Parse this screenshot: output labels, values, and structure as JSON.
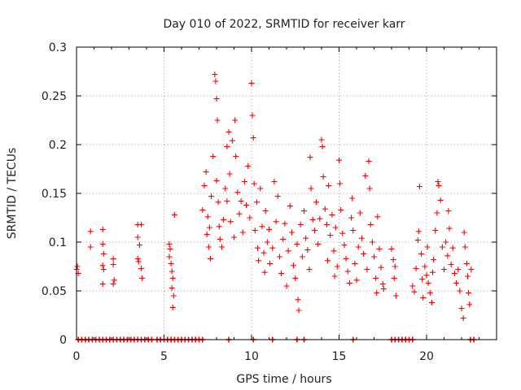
{
  "chart_data": {
    "type": "scatter",
    "title": "Day 010 of 2022, SRMTID for receiver karr",
    "xlabel": "GPS time / hours",
    "ylabel": "SRMTID / TECUs",
    "xlim": [
      0,
      24
    ],
    "ylim": [
      0,
      0.3
    ],
    "xticks": [
      0,
      5,
      10,
      15,
      20
    ],
    "xtick_labels": [
      "0",
      "5",
      "10",
      "15",
      "20"
    ],
    "yticks": [
      0,
      0.05,
      0.1,
      0.15,
      0.2,
      0.25,
      0.3
    ],
    "ytick_labels": [
      "0",
      "0.05",
      "0.1",
      "0.15",
      "0.2",
      "0.25",
      "0.3"
    ],
    "grid": true,
    "marker": "+",
    "color": "#ff0000",
    "series": [
      {
        "name": "SRMTID",
        "points": [
          [
            0.0,
            0.072
          ],
          [
            0.05,
            0.075
          ],
          [
            0.1,
            0.068
          ],
          [
            0.8,
            0.111
          ],
          [
            0.8,
            0.095
          ],
          [
            1.5,
            0.113
          ],
          [
            1.5,
            0.098
          ],
          [
            1.55,
            0.088
          ],
          [
            1.5,
            0.076
          ],
          [
            1.55,
            0.072
          ],
          [
            1.5,
            0.057
          ],
          [
            2.1,
            0.083
          ],
          [
            2.1,
            0.077
          ],
          [
            2.15,
            0.061
          ],
          [
            2.1,
            0.057
          ],
          [
            3.5,
            0.118
          ],
          [
            3.5,
            0.105
          ],
          [
            3.6,
            0.097
          ],
          [
            3.5,
            0.083
          ],
          [
            3.55,
            0.08
          ],
          [
            3.7,
            0.118
          ],
          [
            3.7,
            0.073
          ],
          [
            3.75,
            0.063
          ],
          [
            5.3,
            0.098
          ],
          [
            5.35,
            0.093
          ],
          [
            5.3,
            0.085
          ],
          [
            5.4,
            0.078
          ],
          [
            5.45,
            0.07
          ],
          [
            5.5,
            0.063
          ],
          [
            5.45,
            0.053
          ],
          [
            5.55,
            0.045
          ],
          [
            5.5,
            0.033
          ],
          [
            5.6,
            0.128
          ],
          [
            7.2,
            0.133
          ],
          [
            7.3,
            0.158
          ],
          [
            7.4,
            0.172
          ],
          [
            7.45,
            0.108
          ],
          [
            7.5,
            0.126
          ],
          [
            7.55,
            0.095
          ],
          [
            7.6,
            0.115
          ],
          [
            7.65,
            0.083
          ],
          [
            7.7,
            0.147
          ],
          [
            7.8,
            0.188
          ],
          [
            7.9,
            0.272
          ],
          [
            7.95,
            0.265
          ],
          [
            8.0,
            0.247
          ],
          [
            8.05,
            0.225
          ],
          [
            8.0,
            0.163
          ],
          [
            8.1,
            0.141
          ],
          [
            8.15,
            0.116
          ],
          [
            8.2,
            0.103
          ],
          [
            8.3,
            0.095
          ],
          [
            8.4,
            0.123
          ],
          [
            8.5,
            0.155
          ],
          [
            8.6,
            0.142
          ],
          [
            8.6,
            0.198
          ],
          [
            8.7,
            0.213
          ],
          [
            8.75,
            0.17
          ],
          [
            8.8,
            0.121
          ],
          [
            8.9,
            0.204
          ],
          [
            9.0,
            0.105
          ],
          [
            9.05,
            0.225
          ],
          [
            9.1,
            0.188
          ],
          [
            9.2,
            0.151
          ],
          [
            9.3,
            0.129
          ],
          [
            9.4,
            0.142
          ],
          [
            9.5,
            0.11
          ],
          [
            9.6,
            0.162
          ],
          [
            9.7,
            0.138
          ],
          [
            9.8,
            0.178
          ],
          [
            9.9,
            0.125
          ],
          [
            10.0,
            0.263
          ],
          [
            10.05,
            0.23
          ],
          [
            10.1,
            0.207
          ],
          [
            10.15,
            0.16
          ],
          [
            10.2,
            0.112
          ],
          [
            10.3,
            0.141
          ],
          [
            10.35,
            0.094
          ],
          [
            10.4,
            0.081
          ],
          [
            10.5,
            0.155
          ],
          [
            10.6,
            0.116
          ],
          [
            10.7,
            0.089
          ],
          [
            10.75,
            0.069
          ],
          [
            10.8,
            0.132
          ],
          [
            10.9,
            0.1
          ],
          [
            11.0,
            0.113
          ],
          [
            11.05,
            0.078
          ],
          [
            11.2,
            0.094
          ],
          [
            11.3,
            0.162
          ],
          [
            11.4,
            0.121
          ],
          [
            11.5,
            0.147
          ],
          [
            11.6,
            0.085
          ],
          [
            11.7,
            0.068
          ],
          [
            11.8,
            0.103
          ],
          [
            11.9,
            0.119
          ],
          [
            12.0,
            0.055
          ],
          [
            12.1,
            0.091
          ],
          [
            12.2,
            0.137
          ],
          [
            12.3,
            0.11
          ],
          [
            12.4,
            0.076
          ],
          [
            12.5,
            0.063
          ],
          [
            12.6,
            0.098
          ],
          [
            12.65,
            0.041
          ],
          [
            12.7,
            0.03
          ],
          [
            12.8,
            0.118
          ],
          [
            12.9,
            0.085
          ],
          [
            13.0,
            0.132
          ],
          [
            13.1,
            0.104
          ],
          [
            13.2,
            0.092
          ],
          [
            13.3,
            0.072
          ],
          [
            13.35,
            0.187
          ],
          [
            13.4,
            0.155
          ],
          [
            13.5,
            0.123
          ],
          [
            13.6,
            0.112
          ],
          [
            13.7,
            0.141
          ],
          [
            13.8,
            0.098
          ],
          [
            13.9,
            0.124
          ],
          [
            14.0,
            0.205
          ],
          [
            14.05,
            0.198
          ],
          [
            14.1,
            0.167
          ],
          [
            14.2,
            0.134
          ],
          [
            14.3,
            0.118
          ],
          [
            14.35,
            0.081
          ],
          [
            14.4,
            0.158
          ],
          [
            14.5,
            0.107
          ],
          [
            14.6,
            0.128
          ],
          [
            14.7,
            0.091
          ],
          [
            14.75,
            0.065
          ],
          [
            14.8,
            0.115
          ],
          [
            14.9,
            0.075
          ],
          [
            15.0,
            0.184
          ],
          [
            15.05,
            0.16
          ],
          [
            15.1,
            0.133
          ],
          [
            15.2,
            0.109
          ],
          [
            15.3,
            0.097
          ],
          [
            15.4,
            0.083
          ],
          [
            15.5,
            0.07
          ],
          [
            15.6,
            0.058
          ],
          [
            15.7,
            0.125
          ],
          [
            15.75,
            0.145
          ],
          [
            15.8,
            0.112
          ],
          [
            15.9,
            0.078
          ],
          [
            16.0,
            0.061
          ],
          [
            16.1,
            0.095
          ],
          [
            16.2,
            0.13
          ],
          [
            16.3,
            0.104
          ],
          [
            16.4,
            0.088
          ],
          [
            16.5,
            0.168
          ],
          [
            16.6,
            0.072
          ],
          [
            16.7,
            0.183
          ],
          [
            16.75,
            0.155
          ],
          [
            16.8,
            0.118
          ],
          [
            16.9,
            0.1
          ],
          [
            17.0,
            0.085
          ],
          [
            17.1,
            0.063
          ],
          [
            17.15,
            0.048
          ],
          [
            17.2,
            0.126
          ],
          [
            17.3,
            0.093
          ],
          [
            17.4,
            0.074
          ],
          [
            17.5,
            0.057
          ],
          [
            17.55,
            0.052
          ],
          [
            18.0,
            0.093
          ],
          [
            18.1,
            0.082
          ],
          [
            18.2,
            0.075
          ],
          [
            18.15,
            0.063
          ],
          [
            18.25,
            0.045
          ],
          [
            19.2,
            0.055
          ],
          [
            19.3,
            0.049
          ],
          [
            19.4,
            0.073
          ],
          [
            19.5,
            0.102
          ],
          [
            19.55,
            0.111
          ],
          [
            19.6,
            0.157
          ],
          [
            19.7,
            0.088
          ],
          [
            19.75,
            0.062
          ],
          [
            19.8,
            0.043
          ],
          [
            19.9,
            0.075
          ],
          [
            20.0,
            0.066
          ],
          [
            20.05,
            0.095
          ],
          [
            20.1,
            0.058
          ],
          [
            20.2,
            0.048
          ],
          [
            20.3,
            0.038
          ],
          [
            20.35,
            0.069
          ],
          [
            20.4,
            0.082
          ],
          [
            20.5,
            0.112
          ],
          [
            20.6,
            0.13
          ],
          [
            20.65,
            0.162
          ],
          [
            20.7,
            0.158
          ],
          [
            20.8,
            0.143
          ],
          [
            20.9,
            0.095
          ],
          [
            21.0,
            0.072
          ],
          [
            21.1,
            0.1
          ],
          [
            21.2,
            0.086
          ],
          [
            21.25,
            0.132
          ],
          [
            21.3,
            0.114
          ],
          [
            21.4,
            0.077
          ],
          [
            21.5,
            0.094
          ],
          [
            21.6,
            0.068
          ],
          [
            21.7,
            0.058
          ],
          [
            21.8,
            0.072
          ],
          [
            21.9,
            0.05
          ],
          [
            22.0,
            0.032
          ],
          [
            22.1,
            0.022
          ],
          [
            22.15,
            0.11
          ],
          [
            22.2,
            0.095
          ],
          [
            22.3,
            0.078
          ],
          [
            22.35,
            0.065
          ],
          [
            22.4,
            0.048
          ],
          [
            22.45,
            0.036
          ],
          [
            22.55,
            0.072
          ]
        ]
      },
      {
        "name": "zero_values",
        "points": [
          [
            0.1,
            0
          ],
          [
            0.3,
            0
          ],
          [
            0.5,
            0
          ],
          [
            0.7,
            0
          ],
          [
            0.9,
            0
          ],
          [
            1.1,
            0
          ],
          [
            1.3,
            0
          ],
          [
            1.5,
            0
          ],
          [
            1.7,
            0
          ],
          [
            1.9,
            0
          ],
          [
            2.1,
            0
          ],
          [
            2.3,
            0
          ],
          [
            2.5,
            0
          ],
          [
            2.7,
            0
          ],
          [
            2.9,
            0
          ],
          [
            3.1,
            0
          ],
          [
            3.3,
            0
          ],
          [
            3.5,
            0
          ],
          [
            3.7,
            0
          ],
          [
            3.9,
            0
          ],
          [
            4.1,
            0
          ],
          [
            4.3,
            0
          ],
          [
            4.6,
            0
          ],
          [
            4.8,
            0
          ],
          [
            5.0,
            0
          ],
          [
            5.2,
            0
          ],
          [
            5.4,
            0
          ],
          [
            5.6,
            0
          ],
          [
            5.8,
            0
          ],
          [
            6.0,
            0
          ],
          [
            6.2,
            0
          ],
          [
            6.4,
            0
          ],
          [
            6.6,
            0
          ],
          [
            6.8,
            0
          ],
          [
            7.0,
            0
          ],
          [
            7.2,
            0
          ],
          [
            8.7,
            0
          ],
          [
            10.1,
            0
          ],
          [
            11.2,
            0
          ],
          [
            12.6,
            0
          ],
          [
            13.0,
            0
          ],
          [
            15.8,
            0
          ],
          [
            18.0,
            0
          ],
          [
            18.2,
            0
          ],
          [
            18.4,
            0
          ],
          [
            18.6,
            0
          ],
          [
            18.8,
            0
          ],
          [
            19.0,
            0
          ],
          [
            19.2,
            0
          ],
          [
            22.5,
            0
          ],
          [
            22.7,
            0
          ]
        ]
      }
    ]
  }
}
